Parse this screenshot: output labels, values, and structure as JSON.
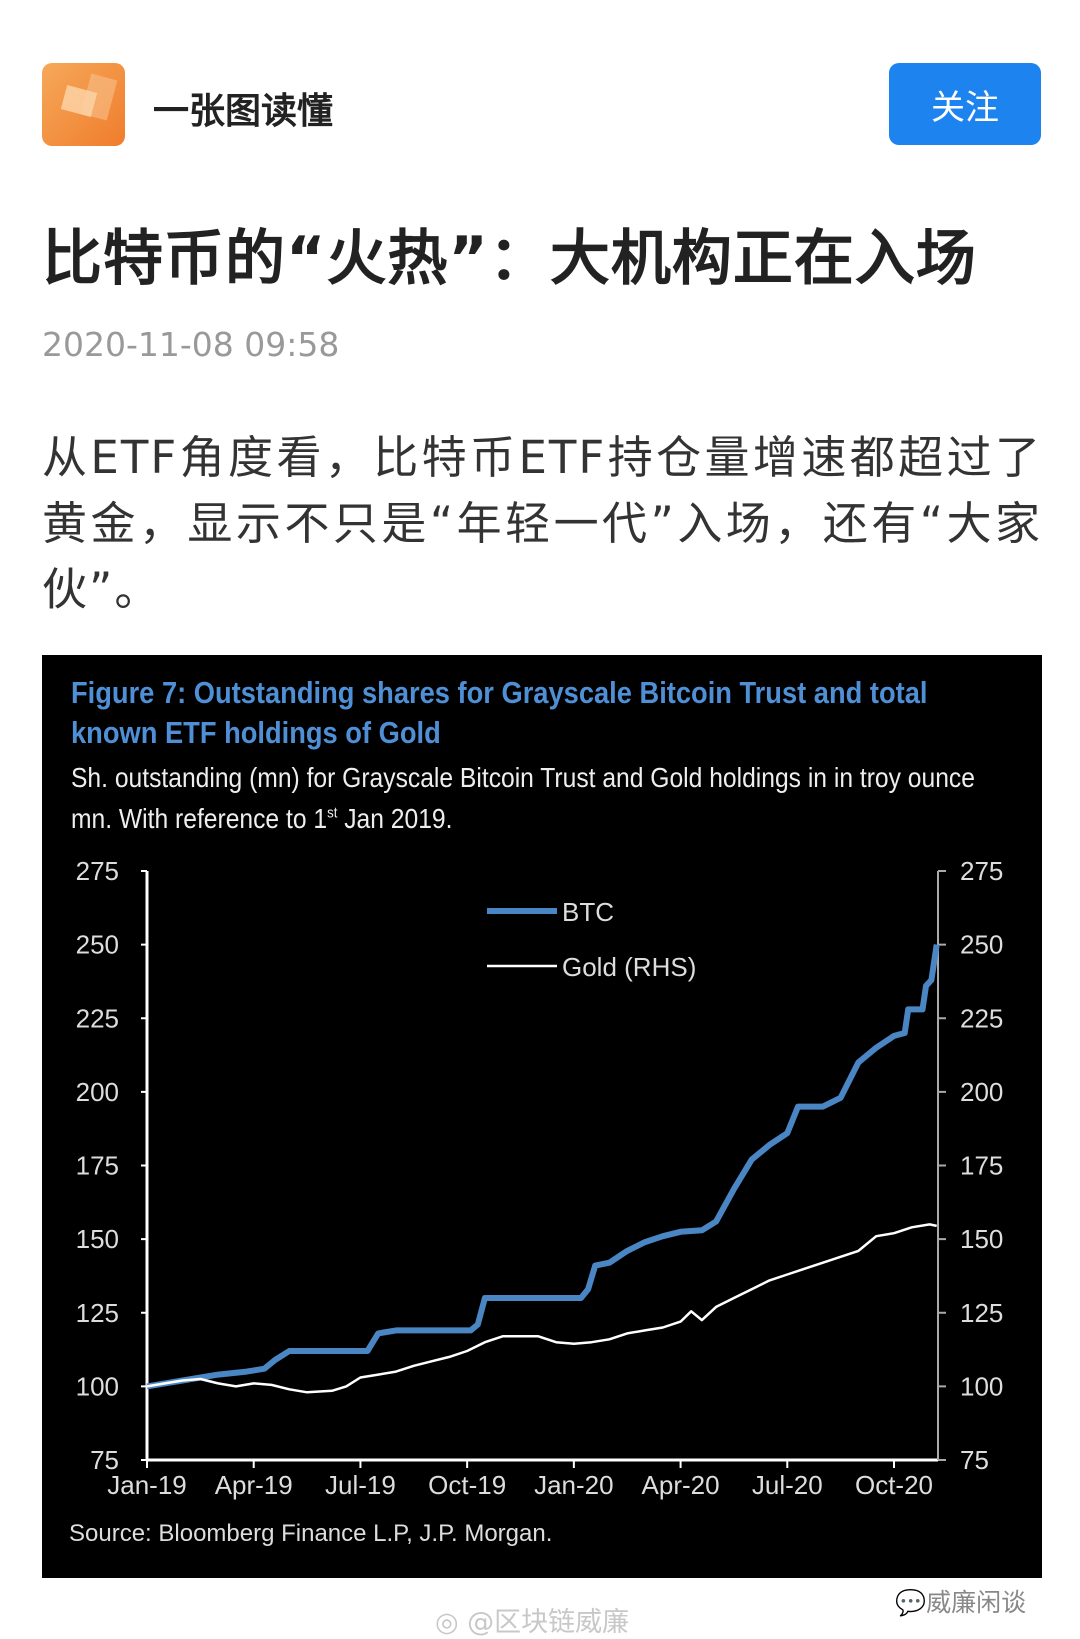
{
  "header": {
    "account_name": "一张图读懂",
    "follow_label": "关注"
  },
  "article": {
    "title": "比特币的“火热”：大机构正在入场",
    "date": "2020-11-08 09:58",
    "paragraph": "从ETF角度看，比特币ETF持仓量增速都超过了黄金，显示不只是“年轻一代”入场，还有“大家伙”。"
  },
  "chart_data": {
    "type": "line",
    "title": "Figure 7: Outstanding shares for Grayscale Bitcoin Trust and total known ETF holdings of Gold",
    "subtitle_pre": "Sh. outstanding (mn) for Grayscale Bitcoin Trust and Gold holdings in in troy ounce mn. With reference to 1",
    "subtitle_sup": "st",
    "subtitle_post": " Jan 2019.",
    "source": "Source: Bloomberg Finance L.P, J.P. Morgan.",
    "x_unit": "months since Jan-2019",
    "xticks": [
      "Jan-19",
      "Apr-19",
      "Jul-19",
      "Oct-19",
      "Jan-20",
      "Apr-20",
      "Jul-20",
      "Oct-20"
    ],
    "xlim": [
      0,
      22.2
    ],
    "ylim": [
      75,
      275
    ],
    "yticks": [
      "75",
      "100",
      "125",
      "150",
      "175",
      "200",
      "225",
      "250",
      "275"
    ],
    "y2ticks": [
      "75",
      "100",
      "125",
      "150",
      "175",
      "200",
      "225",
      "250",
      "275"
    ],
    "legend": "top-center",
    "series": [
      {
        "name": "BTC",
        "color": "#4a86c4",
        "points": [
          [
            0,
            100
          ],
          [
            0.5,
            101
          ],
          [
            1,
            102
          ],
          [
            2,
            104
          ],
          [
            2.8,
            105
          ],
          [
            3.3,
            106
          ],
          [
            3.6,
            109
          ],
          [
            4,
            112
          ],
          [
            6.2,
            112
          ],
          [
            6.3,
            114
          ],
          [
            6.5,
            118
          ],
          [
            7,
            119
          ],
          [
            9.1,
            119
          ],
          [
            9.3,
            121
          ],
          [
            9.5,
            130
          ],
          [
            12.2,
            130
          ],
          [
            12.4,
            133
          ],
          [
            12.6,
            141
          ],
          [
            13,
            142
          ],
          [
            13.5,
            146
          ],
          [
            14,
            149
          ],
          [
            14.5,
            151
          ],
          [
            15,
            152.5
          ],
          [
            15.6,
            153
          ],
          [
            16,
            156
          ],
          [
            16.5,
            167
          ],
          [
            17,
            177
          ],
          [
            17.5,
            182
          ],
          [
            18,
            186
          ],
          [
            18.3,
            195
          ],
          [
            19,
            195
          ],
          [
            19.5,
            198
          ],
          [
            20,
            210
          ],
          [
            20.5,
            215
          ],
          [
            21,
            219
          ],
          [
            21.3,
            220
          ],
          [
            21.4,
            228
          ],
          [
            21.8,
            228
          ],
          [
            21.9,
            236
          ],
          [
            22.05,
            238
          ],
          [
            22.2,
            250
          ]
        ]
      },
      {
        "name": "Gold (RHS)",
        "color": "#ffffff",
        "points": [
          [
            0,
            100
          ],
          [
            0.5,
            101
          ],
          [
            1,
            102
          ],
          [
            1.5,
            102.5
          ],
          [
            2,
            101
          ],
          [
            2.5,
            100
          ],
          [
            3,
            101
          ],
          [
            3.5,
            100.5
          ],
          [
            4,
            99
          ],
          [
            4.5,
            98
          ],
          [
            5.2,
            98.5
          ],
          [
            5.6,
            100
          ],
          [
            6,
            103
          ],
          [
            6.5,
            104
          ],
          [
            7,
            105
          ],
          [
            7.5,
            107
          ],
          [
            8,
            108.5
          ],
          [
            8.5,
            110
          ],
          [
            9,
            112
          ],
          [
            9.5,
            115
          ],
          [
            10,
            117
          ],
          [
            10.5,
            117
          ],
          [
            11,
            117
          ],
          [
            11.5,
            115
          ],
          [
            12,
            114.5
          ],
          [
            12.5,
            115
          ],
          [
            13,
            116
          ],
          [
            13.5,
            118
          ],
          [
            14,
            119
          ],
          [
            14.5,
            120
          ],
          [
            15,
            122
          ],
          [
            15.3,
            125.5
          ],
          [
            15.6,
            122.5
          ],
          [
            16,
            127
          ],
          [
            16.5,
            130
          ],
          [
            17,
            133
          ],
          [
            17.5,
            136
          ],
          [
            18,
            138
          ],
          [
            18.5,
            140
          ],
          [
            19,
            142
          ],
          [
            19.5,
            144
          ],
          [
            20,
            146
          ],
          [
            20.5,
            151
          ],
          [
            21,
            152
          ],
          [
            21.5,
            154
          ],
          [
            22,
            155
          ],
          [
            22.2,
            154.5
          ]
        ]
      }
    ]
  },
  "watermarks": {
    "weibo": "@区块链威廉",
    "wechat": "威廉闲谈"
  }
}
